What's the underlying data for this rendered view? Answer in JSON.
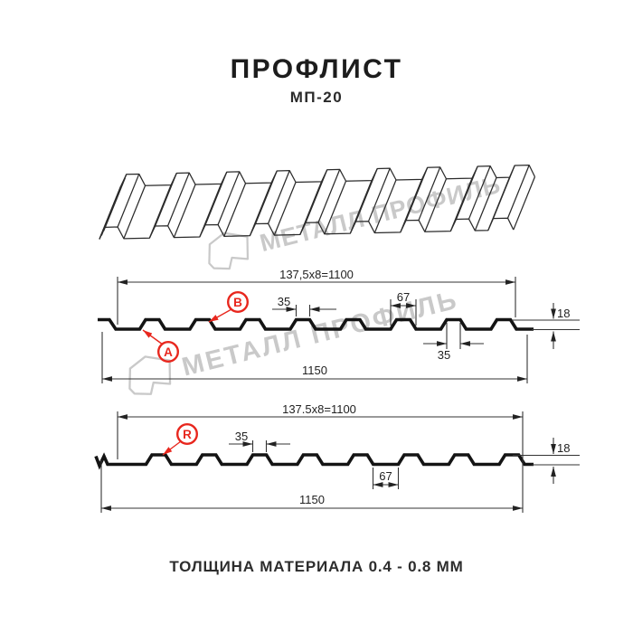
{
  "title": "ПРОФЛИСТ",
  "subtitle": "МП-20",
  "footer": "ТОЛЩИНА МАТЕРИАЛА 0.4 - 0.8 ММ",
  "watermark": {
    "text": "МЕТАЛЛ ПРОФИЛЬ"
  },
  "colors": {
    "red": "#e8271e",
    "profile_line": "#141414",
    "dim_line": "#333333",
    "watermark": "#c9c9c9"
  },
  "views": {
    "top": {
      "module": "137,5x8=1100",
      "total": "1150",
      "rib_top": "35",
      "rib_base": "67",
      "edge_rib": "35",
      "height": "18",
      "point_a": "A",
      "point_b": "B"
    },
    "bottom": {
      "module": "137.5x8=1100",
      "total": "1150",
      "rib_top": "35",
      "valley": "67",
      "height": "18",
      "point_r": "R"
    }
  }
}
